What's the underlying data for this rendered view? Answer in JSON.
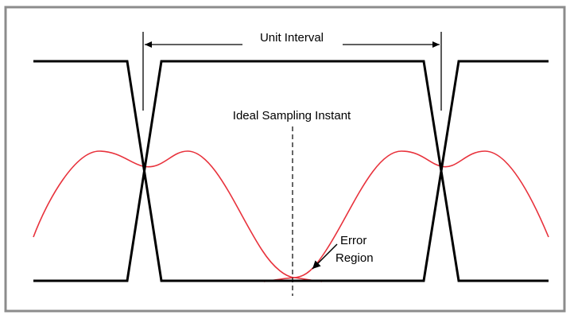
{
  "labels": {
    "unit_interval": "Unit Interval",
    "sampling_instant": "Ideal Sampling Instant",
    "error_region_line1": "Error",
    "error_region_line2": "Region"
  },
  "colors": {
    "border": "#8c8c8c",
    "square_wave": "#000000",
    "sine_wave": "#e8323c",
    "text": "#000000"
  }
}
